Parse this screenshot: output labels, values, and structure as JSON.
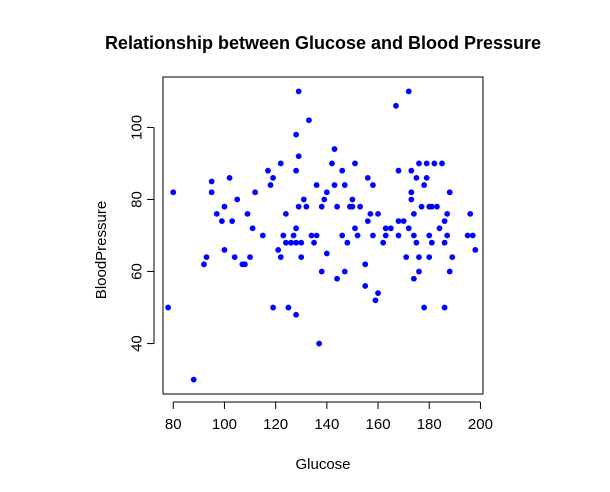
{
  "chart_data": {
    "type": "scatter",
    "title": "Relationship between Glucose and Blood Pressure",
    "xlabel": "Glucose",
    "ylabel": "BloodPressure",
    "xlim": [
      76,
      201
    ],
    "ylim": [
      26,
      114
    ],
    "xticks": [
      80,
      100,
      120,
      140,
      160,
      180,
      200
    ],
    "yticks": [
      40,
      60,
      80,
      100
    ],
    "grid": false,
    "point_color": "#0000ff",
    "axis_color": "#000000",
    "points": [
      [
        78,
        50
      ],
      [
        80,
        82
      ],
      [
        88,
        30
      ],
      [
        92,
        62
      ],
      [
        93,
        64
      ],
      [
        95,
        85
      ],
      [
        95,
        82
      ],
      [
        97,
        76
      ],
      [
        99,
        74
      ],
      [
        100,
        78
      ],
      [
        100,
        66
      ],
      [
        102,
        86
      ],
      [
        103,
        74
      ],
      [
        104,
        64
      ],
      [
        105,
        80
      ],
      [
        107,
        62
      ],
      [
        108,
        62
      ],
      [
        109,
        76
      ],
      [
        110,
        64
      ],
      [
        111,
        72
      ],
      [
        112,
        82
      ],
      [
        115,
        70
      ],
      [
        117,
        88
      ],
      [
        118,
        84
      ],
      [
        119,
        50
      ],
      [
        119,
        86
      ],
      [
        121,
        66
      ],
      [
        122,
        90
      ],
      [
        122,
        64
      ],
      [
        123,
        70
      ],
      [
        124,
        68
      ],
      [
        124,
        76
      ],
      [
        125,
        50
      ],
      [
        126,
        68
      ],
      [
        127,
        70
      ],
      [
        128,
        98
      ],
      [
        128,
        88
      ],
      [
        128,
        72
      ],
      [
        128,
        48
      ],
      [
        128,
        68
      ],
      [
        129,
        78
      ],
      [
        129,
        110
      ],
      [
        129,
        92
      ],
      [
        130,
        64
      ],
      [
        130,
        68
      ],
      [
        131,
        80
      ],
      [
        132,
        78
      ],
      [
        133,
        102
      ],
      [
        134,
        70
      ],
      [
        135,
        68
      ],
      [
        136,
        84
      ],
      [
        136,
        70
      ],
      [
        137,
        40
      ],
      [
        138,
        60
      ],
      [
        138,
        78
      ],
      [
        139,
        80
      ],
      [
        140,
        82
      ],
      [
        140,
        65
      ],
      [
        142,
        90
      ],
      [
        143,
        94
      ],
      [
        143,
        84
      ],
      [
        144,
        58
      ],
      [
        144,
        78
      ],
      [
        146,
        70
      ],
      [
        146,
        88
      ],
      [
        147,
        84
      ],
      [
        147,
        60
      ],
      [
        148,
        68
      ],
      [
        149,
        78
      ],
      [
        150,
        78
      ],
      [
        150,
        80
      ],
      [
        151,
        72
      ],
      [
        151,
        90
      ],
      [
        152,
        70
      ],
      [
        153,
        78
      ],
      [
        155,
        56
      ],
      [
        155,
        62
      ],
      [
        156,
        74
      ],
      [
        156,
        86
      ],
      [
        157,
        76
      ],
      [
        158,
        84
      ],
      [
        158,
        70
      ],
      [
        159,
        52
      ],
      [
        160,
        76
      ],
      [
        160,
        54
      ],
      [
        162,
        68
      ],
      [
        163,
        70
      ],
      [
        163,
        72
      ],
      [
        165,
        72
      ],
      [
        167,
        106
      ],
      [
        168,
        74
      ],
      [
        168,
        88
      ],
      [
        168,
        70
      ],
      [
        170,
        74
      ],
      [
        171,
        64
      ],
      [
        172,
        110
      ],
      [
        172,
        72
      ],
      [
        173,
        80
      ],
      [
        173,
        88
      ],
      [
        173,
        82
      ],
      [
        174,
        76
      ],
      [
        174,
        70
      ],
      [
        174,
        58
      ],
      [
        175,
        86
      ],
      [
        175,
        68
      ],
      [
        176,
        90
      ],
      [
        176,
        64
      ],
      [
        176,
        60
      ],
      [
        177,
        78
      ],
      [
        178,
        50
      ],
      [
        178,
        84
      ],
      [
        179,
        86
      ],
      [
        179,
        90
      ],
      [
        180,
        78
      ],
      [
        180,
        70
      ],
      [
        180,
        64
      ],
      [
        181,
        68
      ],
      [
        181,
        78
      ],
      [
        182,
        90
      ],
      [
        183,
        78
      ],
      [
        184,
        72
      ],
      [
        185,
        90
      ],
      [
        186,
        50
      ],
      [
        186,
        74
      ],
      [
        186,
        68
      ],
      [
        187,
        76
      ],
      [
        187,
        70
      ],
      [
        188,
        82
      ],
      [
        188,
        60
      ],
      [
        189,
        64
      ],
      [
        195,
        70
      ],
      [
        196,
        76
      ],
      [
        197,
        70
      ],
      [
        198,
        66
      ]
    ]
  }
}
